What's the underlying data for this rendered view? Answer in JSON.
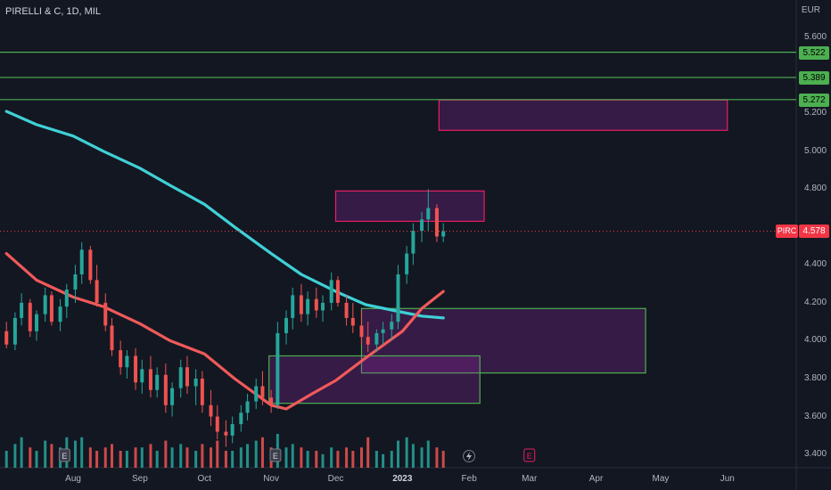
{
  "header": {
    "ticker": "PIRELLI & C, 1D, MIL",
    "currency": "EUR"
  },
  "chart_data": {
    "type": "candlestick",
    "title": "PIRELLI & C, 1D, MIL",
    "currency": "EUR",
    "y_ticks": [
      "5.600",
      "5.200",
      "5.000",
      "4.800",
      "4.400",
      "4.200",
      "4.000",
      "3.800",
      "3.600",
      "3.400"
    ],
    "x_ticks": [
      "Aug",
      "Sep",
      "Oct",
      "Nov",
      "Dec",
      "2023",
      "Feb",
      "Mar",
      "Apr",
      "May",
      "Jun"
    ],
    "ylim": [
      3.33,
      5.68
    ],
    "last_price": {
      "symbol": "PIRC",
      "value": "4.578"
    },
    "levels": [
      {
        "value": 5.522,
        "label": "5.522"
      },
      {
        "value": 5.389,
        "label": "5.389"
      },
      {
        "value": 5.272,
        "label": "5.272"
      }
    ],
    "zones": [
      {
        "kind": "supply",
        "x0": "2023-01-18",
        "x1": "2023-06-01",
        "y0": 5.11,
        "y1": 5.27
      },
      {
        "kind": "supply",
        "x0": "2022-12-01",
        "x1": "2023-02-08",
        "y0": 4.63,
        "y1": 4.79
      },
      {
        "kind": "demand",
        "x0": "2022-12-13",
        "x1": "2023-04-24",
        "y0": 3.83,
        "y1": 4.17
      },
      {
        "kind": "demand",
        "x0": "2022-10-31",
        "x1": "2023-02-06",
        "y0": 3.67,
        "y1": 3.92
      }
    ],
    "series": [
      {
        "name": "",
        "color": "#3fd0d6",
        "points": [
          [
            "2022-07-01",
            5.21
          ],
          [
            "2022-07-15",
            5.14
          ],
          [
            "2022-08-01",
            5.08
          ],
          [
            "2022-08-15",
            5.0
          ],
          [
            "2022-09-01",
            4.91
          ],
          [
            "2022-09-15",
            4.82
          ],
          [
            "2022-10-01",
            4.72
          ],
          [
            "2022-10-15",
            4.6
          ],
          [
            "2022-11-01",
            4.46
          ],
          [
            "2022-11-15",
            4.35
          ],
          [
            "2022-12-01",
            4.26
          ],
          [
            "2022-12-15",
            4.19
          ],
          [
            "2023-01-01",
            4.15
          ],
          [
            "2023-01-10",
            4.13
          ],
          [
            "2023-01-20",
            4.12
          ]
        ]
      },
      {
        "name": "",
        "color": "#f05a5a",
        "points": [
          [
            "2022-07-01",
            4.46
          ],
          [
            "2022-07-15",
            4.32
          ],
          [
            "2022-08-01",
            4.23
          ],
          [
            "2022-08-15",
            4.18
          ],
          [
            "2022-09-01",
            4.09
          ],
          [
            "2022-09-15",
            4.0
          ],
          [
            "2022-10-01",
            3.93
          ],
          [
            "2022-10-15",
            3.8
          ],
          [
            "2022-11-01",
            3.66
          ],
          [
            "2022-11-08",
            3.64
          ],
          [
            "2022-11-20",
            3.72
          ],
          [
            "2022-12-01",
            3.79
          ],
          [
            "2022-12-15",
            3.91
          ],
          [
            "2023-01-01",
            4.05
          ],
          [
            "2023-01-10",
            4.17
          ],
          [
            "2023-01-20",
            4.26
          ]
        ]
      }
    ],
    "candles": [
      [
        "2022-07-01",
        4.05,
        4.1,
        3.96,
        3.98
      ],
      [
        "2022-07-05",
        3.98,
        4.15,
        3.95,
        4.12
      ],
      [
        "2022-07-08",
        4.12,
        4.25,
        4.08,
        4.2
      ],
      [
        "2022-07-12",
        4.2,
        4.22,
        4.02,
        4.05
      ],
      [
        "2022-07-15",
        4.05,
        4.16,
        4.0,
        4.14
      ],
      [
        "2022-07-19",
        4.14,
        4.28,
        4.1,
        4.24
      ],
      [
        "2022-07-22",
        4.24,
        4.26,
        4.08,
        4.1
      ],
      [
        "2022-07-26",
        4.1,
        4.22,
        4.05,
        4.18
      ],
      [
        "2022-07-29",
        4.18,
        4.3,
        4.12,
        4.27
      ],
      [
        "2022-08-02",
        4.27,
        4.4,
        4.2,
        4.35
      ],
      [
        "2022-08-05",
        4.35,
        4.52,
        4.3,
        4.48
      ],
      [
        "2022-08-09",
        4.48,
        4.5,
        4.3,
        4.32
      ],
      [
        "2022-08-12",
        4.32,
        4.4,
        4.18,
        4.2
      ],
      [
        "2022-08-16",
        4.2,
        4.25,
        4.05,
        4.08
      ],
      [
        "2022-08-19",
        4.08,
        4.12,
        3.92,
        3.95
      ],
      [
        "2022-08-23",
        3.95,
        4.0,
        3.82,
        3.86
      ],
      [
        "2022-08-26",
        3.86,
        3.95,
        3.8,
        3.92
      ],
      [
        "2022-08-30",
        3.92,
        3.96,
        3.74,
        3.78
      ],
      [
        "2022-09-02",
        3.78,
        3.9,
        3.72,
        3.85
      ],
      [
        "2022-09-06",
        3.85,
        3.92,
        3.7,
        3.74
      ],
      [
        "2022-09-09",
        3.74,
        3.86,
        3.7,
        3.82
      ],
      [
        "2022-09-13",
        3.82,
        3.88,
        3.62,
        3.66
      ],
      [
        "2022-09-16",
        3.66,
        3.78,
        3.6,
        3.75
      ],
      [
        "2022-09-20",
        3.75,
        3.9,
        3.7,
        3.86
      ],
      [
        "2022-09-23",
        3.86,
        3.92,
        3.72,
        3.76
      ],
      [
        "2022-09-27",
        3.76,
        3.85,
        3.66,
        3.8
      ],
      [
        "2022-09-30",
        3.8,
        3.84,
        3.62,
        3.66
      ],
      [
        "2022-10-04",
        3.66,
        3.74,
        3.55,
        3.6
      ],
      [
        "2022-10-07",
        3.6,
        3.66,
        3.48,
        3.52
      ],
      [
        "2022-10-11",
        3.52,
        3.58,
        3.44,
        3.5
      ],
      [
        "2022-10-14",
        3.5,
        3.6,
        3.46,
        3.56
      ],
      [
        "2022-10-18",
        3.56,
        3.66,
        3.52,
        3.62
      ],
      [
        "2022-10-21",
        3.62,
        3.72,
        3.58,
        3.68
      ],
      [
        "2022-10-25",
        3.68,
        3.8,
        3.64,
        3.76
      ],
      [
        "2022-10-28",
        3.76,
        3.84,
        3.66,
        3.7
      ],
      [
        "2022-11-01",
        3.7,
        3.74,
        3.62,
        3.66
      ],
      [
        "2022-11-04",
        3.66,
        4.1,
        3.64,
        4.04
      ],
      [
        "2022-11-08",
        4.04,
        4.16,
        3.98,
        4.12
      ],
      [
        "2022-11-11",
        4.12,
        4.28,
        4.06,
        4.24
      ],
      [
        "2022-11-15",
        4.24,
        4.3,
        4.1,
        4.14
      ],
      [
        "2022-11-18",
        4.14,
        4.26,
        4.08,
        4.22
      ],
      [
        "2022-11-22",
        4.22,
        4.28,
        4.12,
        4.16
      ],
      [
        "2022-11-25",
        4.16,
        4.24,
        4.1,
        4.2
      ],
      [
        "2022-11-29",
        4.2,
        4.36,
        4.16,
        4.32
      ],
      [
        "2022-12-02",
        4.32,
        4.34,
        4.18,
        4.2
      ],
      [
        "2022-12-06",
        4.2,
        4.24,
        4.08,
        4.12
      ],
      [
        "2022-12-09",
        4.12,
        4.2,
        4.04,
        4.08
      ],
      [
        "2022-12-13",
        4.08,
        4.16,
        3.98,
        4.02
      ],
      [
        "2022-12-16",
        4.02,
        4.1,
        3.94,
        3.98
      ],
      [
        "2022-12-20",
        3.98,
        4.06,
        3.94,
        4.04
      ],
      [
        "2022-12-23",
        4.04,
        4.1,
        3.98,
        4.06
      ],
      [
        "2022-12-27",
        4.06,
        4.14,
        4.0,
        4.1
      ],
      [
        "2022-12-30",
        4.1,
        4.4,
        4.06,
        4.35
      ],
      [
        "2023-01-03",
        4.35,
        4.5,
        4.3,
        4.46
      ],
      [
        "2023-01-06",
        4.46,
        4.62,
        4.4,
        4.58
      ],
      [
        "2023-01-10",
        4.58,
        4.68,
        4.52,
        4.64
      ],
      [
        "2023-01-13",
        4.64,
        4.8,
        4.58,
        4.7
      ],
      [
        "2023-01-17",
        4.7,
        4.72,
        4.52,
        4.55
      ],
      [
        "2023-01-20",
        4.55,
        4.62,
        4.52,
        4.578
      ]
    ],
    "volume": [
      [
        "2022-07-01",
        0.5,
        "up"
      ],
      [
        "2022-07-05",
        0.7,
        "up"
      ],
      [
        "2022-07-08",
        0.9,
        "up"
      ],
      [
        "2022-07-12",
        0.6,
        "down"
      ],
      [
        "2022-07-15",
        0.5,
        "up"
      ],
      [
        "2022-07-19",
        0.8,
        "up"
      ],
      [
        "2022-07-22",
        0.7,
        "down"
      ],
      [
        "2022-07-26",
        0.6,
        "up"
      ],
      [
        "2022-07-29",
        0.9,
        "up"
      ],
      [
        "2022-08-02",
        0.8,
        "up"
      ],
      [
        "2022-08-05",
        0.9,
        "up"
      ],
      [
        "2022-08-09",
        0.6,
        "down"
      ],
      [
        "2022-08-12",
        0.5,
        "down"
      ],
      [
        "2022-08-16",
        0.6,
        "down"
      ],
      [
        "2022-08-19",
        0.7,
        "down"
      ],
      [
        "2022-08-23",
        0.5,
        "down"
      ],
      [
        "2022-08-26",
        0.5,
        "up"
      ],
      [
        "2022-08-30",
        0.6,
        "down"
      ],
      [
        "2022-09-02",
        0.6,
        "up"
      ],
      [
        "2022-09-06",
        0.7,
        "down"
      ],
      [
        "2022-09-09",
        0.5,
        "up"
      ],
      [
        "2022-09-13",
        0.8,
        "down"
      ],
      [
        "2022-09-16",
        0.6,
        "up"
      ],
      [
        "2022-09-20",
        0.7,
        "up"
      ],
      [
        "2022-09-23",
        0.6,
        "down"
      ],
      [
        "2022-09-27",
        0.5,
        "up"
      ],
      [
        "2022-09-30",
        0.7,
        "down"
      ],
      [
        "2022-10-04",
        0.6,
        "down"
      ],
      [
        "2022-10-07",
        0.8,
        "down"
      ],
      [
        "2022-10-11",
        0.5,
        "down"
      ],
      [
        "2022-10-14",
        0.5,
        "up"
      ],
      [
        "2022-10-18",
        0.6,
        "up"
      ],
      [
        "2022-10-21",
        0.7,
        "up"
      ],
      [
        "2022-10-25",
        0.8,
        "up"
      ],
      [
        "2022-10-28",
        0.9,
        "down"
      ],
      [
        "2022-11-01",
        0.6,
        "down"
      ],
      [
        "2022-11-04",
        1.0,
        "up"
      ],
      [
        "2022-11-08",
        0.6,
        "up"
      ],
      [
        "2022-11-11",
        0.7,
        "up"
      ],
      [
        "2022-11-15",
        0.6,
        "down"
      ],
      [
        "2022-11-18",
        0.5,
        "up"
      ],
      [
        "2022-11-22",
        0.5,
        "down"
      ],
      [
        "2022-11-25",
        0.4,
        "up"
      ],
      [
        "2022-11-29",
        0.6,
        "up"
      ],
      [
        "2022-12-02",
        0.5,
        "down"
      ],
      [
        "2022-12-06",
        0.6,
        "down"
      ],
      [
        "2022-12-09",
        0.5,
        "down"
      ],
      [
        "2022-12-13",
        0.6,
        "down"
      ],
      [
        "2022-12-16",
        0.9,
        "down"
      ],
      [
        "2022-12-20",
        0.5,
        "up"
      ],
      [
        "2022-12-23",
        0.4,
        "up"
      ],
      [
        "2022-12-27",
        0.5,
        "up"
      ],
      [
        "2022-12-30",
        0.8,
        "up"
      ],
      [
        "2023-01-03",
        0.9,
        "up"
      ],
      [
        "2023-01-06",
        0.7,
        "up"
      ],
      [
        "2023-01-10",
        0.6,
        "up"
      ],
      [
        "2023-01-13",
        0.8,
        "up"
      ],
      [
        "2023-01-17",
        0.6,
        "down"
      ],
      [
        "2023-01-20",
        0.5,
        "down"
      ]
    ],
    "events": [
      {
        "date": "2022-07-28",
        "label": "E"
      },
      {
        "date": "2022-11-03",
        "label": "E"
      },
      {
        "date": "2023-03-01",
        "label": "E"
      }
    ],
    "colors": {
      "up": "#26a69a",
      "down": "#ef5350",
      "level": "#4caf50",
      "supply": "#e91e63",
      "demand": "#4caf50",
      "background": "#131722"
    }
  }
}
